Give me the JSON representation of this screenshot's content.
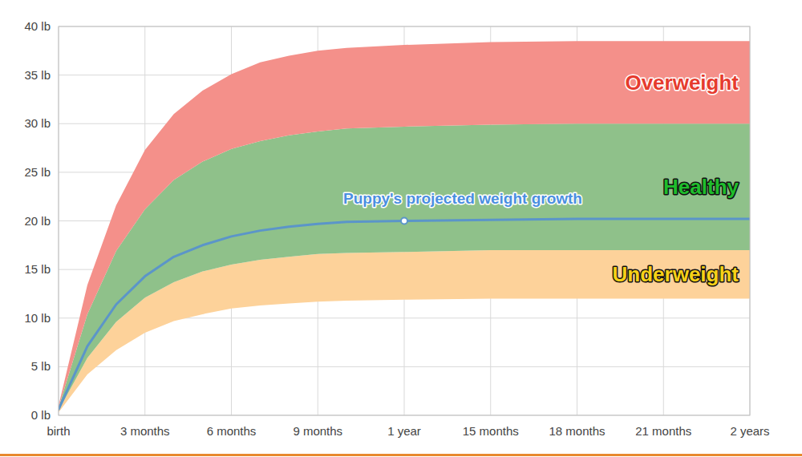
{
  "chart_data": {
    "type": "area",
    "x": [
      0,
      1,
      2,
      3,
      4,
      5,
      6,
      7,
      8,
      9,
      10,
      12,
      15,
      18,
      21,
      24
    ],
    "xlim": [
      0,
      24
    ],
    "xticks": [
      {
        "value": 0,
        "label": "birth"
      },
      {
        "value": 3,
        "label": "3 months"
      },
      {
        "value": 6,
        "label": "6 months"
      },
      {
        "value": 9,
        "label": "9 months"
      },
      {
        "value": 12,
        "label": "1 year"
      },
      {
        "value": 15,
        "label": "15 months"
      },
      {
        "value": 18,
        "label": "18 months"
      },
      {
        "value": 21,
        "label": "21 months"
      },
      {
        "value": 24,
        "label": "2 years"
      }
    ],
    "ylim": [
      0,
      40
    ],
    "yticks": [
      {
        "value": 0,
        "label": "0 lb"
      },
      {
        "value": 5,
        "label": "5 lb"
      },
      {
        "value": 10,
        "label": "10 lb"
      },
      {
        "value": 15,
        "label": "15 lb"
      },
      {
        "value": 20,
        "label": "20 lb"
      },
      {
        "value": 25,
        "label": "25 lb"
      },
      {
        "value": 30,
        "label": "30 lb"
      },
      {
        "value": 35,
        "label": "35 lb"
      },
      {
        "value": 40,
        "label": "40 lb"
      }
    ],
    "grid": true,
    "series": [
      {
        "name": "Underweight",
        "type": "area",
        "color": "#fdd29a",
        "lower": [
          0.3,
          4.2,
          6.7,
          8.5,
          9.7,
          10.4,
          11.0,
          11.3,
          11.5,
          11.7,
          11.8,
          11.9,
          12.0,
          12.0,
          12.0,
          12.0
        ],
        "values": [
          0.5,
          5.9,
          9.6,
          12.1,
          13.7,
          14.8,
          15.5,
          16.0,
          16.3,
          16.6,
          16.7,
          16.8,
          17.0,
          17.0,
          17.0,
          17.0
        ]
      },
      {
        "name": "Healthy",
        "type": "area",
        "color": "#8fc18a",
        "lower": [
          0.5,
          5.9,
          9.6,
          12.1,
          13.7,
          14.8,
          15.5,
          16.0,
          16.3,
          16.6,
          16.7,
          16.8,
          17.0,
          17.0,
          17.0,
          17.0
        ],
        "values": [
          0.8,
          10.4,
          16.9,
          21.2,
          24.2,
          26.1,
          27.4,
          28.2,
          28.8,
          29.2,
          29.5,
          29.7,
          29.9,
          30.0,
          30.0,
          30.0
        ]
      },
      {
        "name": "Overweight",
        "type": "area",
        "color": "#f4908a",
        "lower": [
          0.8,
          10.4,
          16.9,
          21.2,
          24.2,
          26.1,
          27.4,
          28.2,
          28.8,
          29.2,
          29.5,
          29.7,
          29.9,
          30.0,
          30.0,
          30.0
        ],
        "values": [
          1.0,
          13.4,
          21.6,
          27.3,
          31.0,
          33.4,
          35.1,
          36.3,
          37.0,
          37.5,
          37.8,
          38.1,
          38.4,
          38.5,
          38.5,
          38.5
        ]
      },
      {
        "name": "Puppy's projected weight growth",
        "type": "line",
        "color": "#5b95c9",
        "values": [
          0.6,
          7.1,
          11.4,
          14.3,
          16.3,
          17.5,
          18.4,
          19.0,
          19.4,
          19.7,
          19.9,
          20.0,
          20.1,
          20.2,
          20.2,
          20.2
        ]
      },
      {
        "type": "scatter",
        "marker": "circle",
        "color": "#5b95c9",
        "x": [
          12
        ],
        "values": [
          20.0
        ]
      }
    ]
  }
}
